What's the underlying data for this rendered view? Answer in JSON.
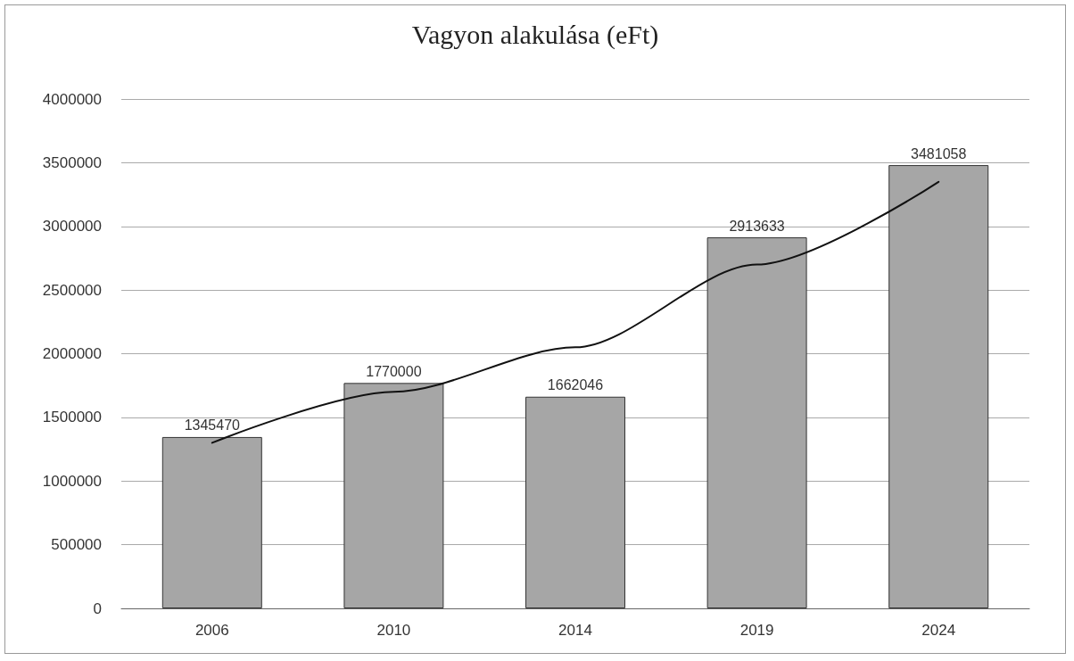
{
  "chart_data": {
    "type": "bar",
    "title": "Vagyon alakulása (eFt)",
    "categories": [
      "2006",
      "2010",
      "2014",
      "2019",
      "2024"
    ],
    "series": [
      {
        "color": "#a6a6a6",
        "values": [
          1345470,
          1770000,
          1662046,
          2913633,
          3481058
        ],
        "value_labels": [
          "1345470",
          "1770000",
          "1662046",
          "2913633",
          "3481058"
        ]
      },
      {
        "type": "line",
        "color": "#111111",
        "values": [
          1300000,
          1700000,
          2050000,
          2700000,
          3350000
        ],
        "marker": "none"
      }
    ],
    "ylim": [
      0,
      4000000
    ],
    "yticks": [
      0,
      500000,
      1000000,
      1500000,
      2000000,
      2500000,
      3000000,
      3500000,
      4000000
    ],
    "grid": "y"
  }
}
